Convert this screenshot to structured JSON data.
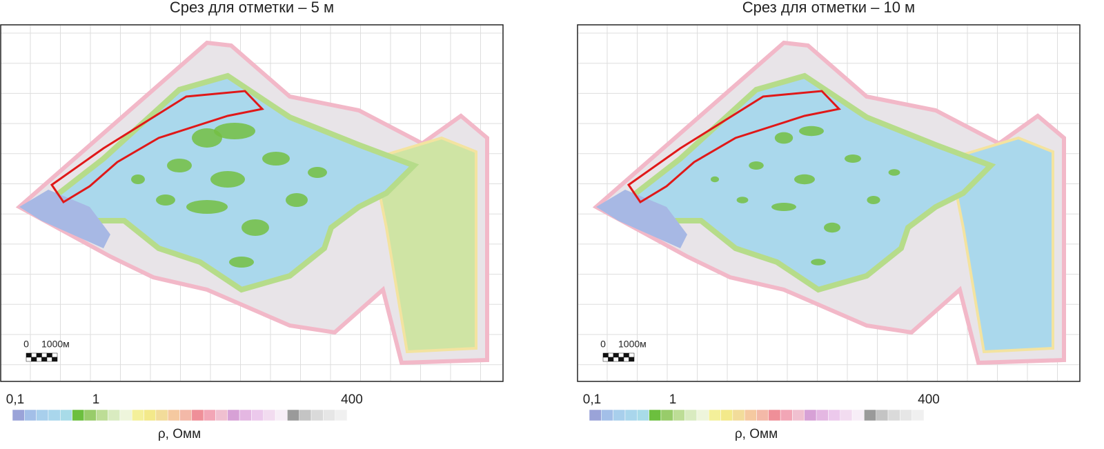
{
  "panels": [
    {
      "title": "Срез для отметки – 5 м",
      "scale_bar": {
        "start": "0",
        "end": "1000м"
      },
      "colorbar": {
        "labels": [
          "0,1",
          "1",
          "400"
        ],
        "unit": "ρ, Омм"
      }
    },
    {
      "title": "Срез для отметки – 10 м",
      "scale_bar": {
        "start": "0",
        "end": "1000м"
      },
      "colorbar": {
        "labels": [
          "0,1",
          "1",
          "400"
        ],
        "unit": "ρ, Омм"
      }
    }
  ]
}
